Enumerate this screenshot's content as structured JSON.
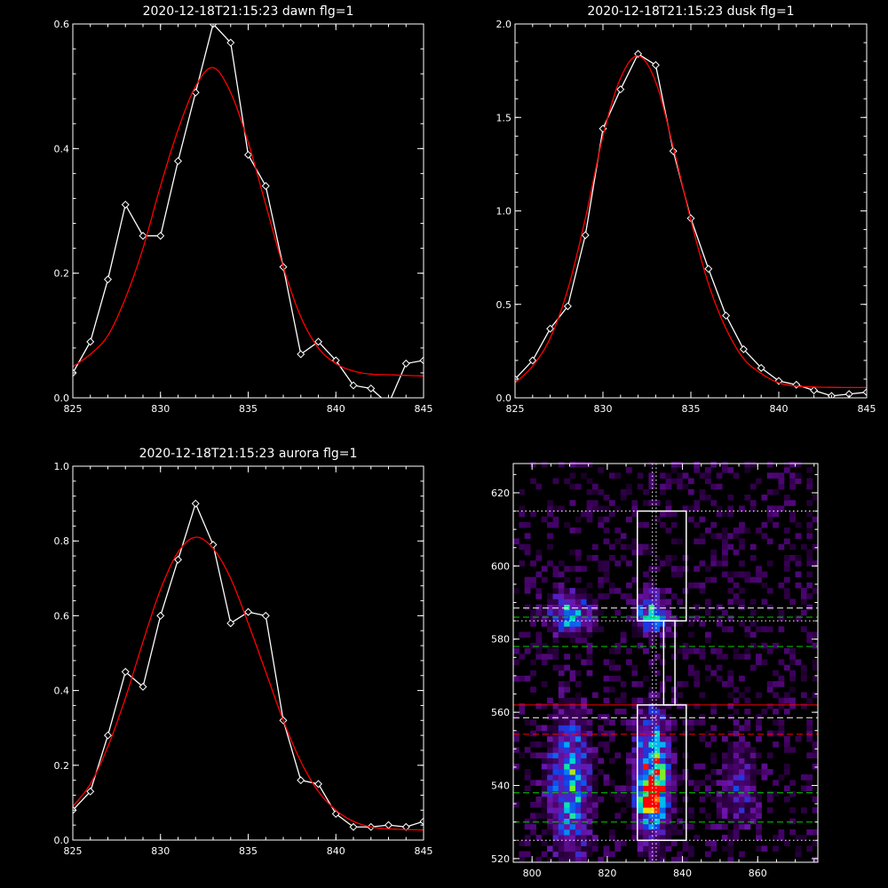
{
  "chart_data": [
    {
      "type": "line",
      "title": "2020-12-18T21:15:23 dawn flg=1",
      "xlim": [
        825,
        845
      ],
      "ylim": [
        0,
        0.6
      ],
      "xticks": [
        825,
        830,
        835,
        840,
        845
      ],
      "yticks": [
        0.0,
        0.2,
        0.4,
        0.6
      ],
      "ytick_labels": [
        "0.0",
        "0.2",
        "0.4",
        "0.6"
      ],
      "series": [
        {
          "color": "#ffffff",
          "marker": "diamond",
          "x": [
            825,
            826,
            827,
            828,
            829,
            830,
            831,
            832,
            833,
            834,
            835,
            836,
            837,
            838,
            839,
            840,
            841,
            842,
            843,
            844,
            845
          ],
          "y": [
            0.04,
            0.09,
            0.19,
            0.31,
            0.26,
            0.26,
            0.38,
            0.49,
            0.6,
            0.57,
            0.39,
            0.34,
            0.21,
            0.07,
            0.09,
            0.06,
            0.02,
            0.015,
            -0.01,
            0.055,
            0.06
          ]
        },
        {
          "color": "#ff0000",
          "x": [
            825,
            826,
            827,
            828,
            829,
            830,
            831,
            832,
            833,
            834,
            835,
            836,
            837,
            838,
            839,
            840,
            841,
            842,
            843,
            844,
            845
          ],
          "y": [
            0.05,
            0.07,
            0.1,
            0.16,
            0.24,
            0.34,
            0.43,
            0.5,
            0.53,
            0.49,
            0.41,
            0.31,
            0.21,
            0.13,
            0.08,
            0.055,
            0.043,
            0.038,
            0.037,
            0.036,
            0.035
          ]
        }
      ]
    },
    {
      "type": "line",
      "title": "2020-12-18T21:15:23 dusk flg=1",
      "xlim": [
        825,
        845
      ],
      "ylim": [
        0,
        2.0
      ],
      "xticks": [
        825,
        830,
        835,
        840,
        845
      ],
      "yticks": [
        0.0,
        0.5,
        1.0,
        1.5,
        2.0
      ],
      "ytick_labels": [
        "0.0",
        "0.5",
        "1.0",
        "1.5",
        "2.0"
      ],
      "series": [
        {
          "color": "#ffffff",
          "marker": "diamond",
          "x": [
            825,
            826,
            827,
            828,
            829,
            830,
            831,
            832,
            833,
            834,
            835,
            836,
            837,
            838,
            839,
            840,
            841,
            842,
            843,
            844,
            845
          ],
          "y": [
            0.1,
            0.2,
            0.37,
            0.49,
            0.87,
            1.44,
            1.65,
            1.84,
            1.78,
            1.32,
            0.96,
            0.69,
            0.44,
            0.26,
            0.16,
            0.09,
            0.07,
            0.04,
            0.01,
            0.02,
            0.03
          ]
        },
        {
          "color": "#ff0000",
          "x": [
            825,
            826,
            827,
            828,
            829,
            830,
            831,
            832,
            833,
            834,
            835,
            836,
            837,
            838,
            839,
            840,
            841,
            842,
            843,
            844,
            845
          ],
          "y": [
            0.08,
            0.17,
            0.32,
            0.58,
            0.96,
            1.4,
            1.71,
            1.83,
            1.69,
            1.34,
            0.95,
            0.61,
            0.37,
            0.21,
            0.13,
            0.08,
            0.063,
            0.058,
            0.056,
            0.055,
            0.055
          ]
        }
      ]
    },
    {
      "type": "line",
      "title": "2020-12-18T21:15:23 aurora flg=1",
      "xlim": [
        825,
        845
      ],
      "ylim": [
        0,
        1.0
      ],
      "xticks": [
        825,
        830,
        835,
        840,
        845
      ],
      "yticks": [
        0.0,
        0.2,
        0.4,
        0.6,
        0.8,
        1.0
      ],
      "ytick_labels": [
        "0.0",
        "0.2",
        "0.4",
        "0.6",
        "0.8",
        "1.0"
      ],
      "series": [
        {
          "color": "#ffffff",
          "marker": "diamond",
          "x": [
            825,
            826,
            827,
            828,
            829,
            830,
            831,
            832,
            833,
            834,
            835,
            836,
            837,
            838,
            839,
            840,
            841,
            842,
            843,
            844,
            845
          ],
          "y": [
            0.08,
            0.13,
            0.28,
            0.45,
            0.41,
            0.6,
            0.75,
            0.9,
            0.79,
            0.58,
            0.61,
            0.6,
            0.32,
            0.16,
            0.15,
            0.07,
            0.035,
            0.035,
            0.04,
            0.035,
            0.05
          ]
        },
        {
          "color": "#ff0000",
          "x": [
            825,
            826,
            827,
            828,
            829,
            830,
            831,
            832,
            833,
            834,
            835,
            836,
            837,
            838,
            839,
            840,
            841,
            842,
            843,
            844,
            845
          ],
          "y": [
            0.09,
            0.15,
            0.25,
            0.38,
            0.53,
            0.67,
            0.77,
            0.81,
            0.78,
            0.7,
            0.58,
            0.45,
            0.32,
            0.21,
            0.13,
            0.08,
            0.05,
            0.035,
            0.03,
            0.028,
            0.027
          ]
        }
      ]
    },
    {
      "type": "heatmap",
      "title": "",
      "colormap": "rainbow",
      "xlim": [
        795,
        876
      ],
      "ylim": [
        519,
        628
      ],
      "xticks": [
        800,
        820,
        840,
        860
      ],
      "yticks": [
        520,
        540,
        560,
        580,
        600,
        620
      ],
      "hot_spots": [
        {
          "x": 810,
          "y": 587,
          "w": 5,
          "h": 5,
          "intensity": 0.45
        },
        {
          "x": 832,
          "y": 587,
          "w": 4,
          "h": 5,
          "intensity": 0.45
        },
        {
          "x": 810,
          "y": 540,
          "w": 5,
          "h": 17,
          "intensity": 0.5
        },
        {
          "x": 832,
          "y": 542,
          "w": 4,
          "h": 15,
          "intensity": 0.75
        },
        {
          "x": 832,
          "y": 537,
          "w": 2.5,
          "h": 4,
          "intensity": 1.0
        },
        {
          "x": 855,
          "y": 540,
          "w": 5,
          "h": 12,
          "intensity": 0.18
        }
      ],
      "boxes": [
        {
          "x0": 828,
          "x1": 841,
          "y0": 585,
          "y1": 615,
          "color": "#ffffff"
        },
        {
          "x0": 835,
          "x1": 838,
          "y0": 562,
          "y1": 585,
          "color": "#ffffff"
        },
        {
          "x0": 828,
          "x1": 841,
          "y0": 525,
          "y1": 562,
          "color": "#ffffff"
        }
      ],
      "hlines": [
        {
          "y": 615,
          "color": "#ffffff",
          "style": "dotted"
        },
        {
          "y": 588.5,
          "color": "#ffffff",
          "style": "dashed"
        },
        {
          "y": 586,
          "color": "#00d000",
          "style": "dashed"
        },
        {
          "y": 585,
          "color": "#ffffff",
          "style": "dotted"
        },
        {
          "y": 578,
          "color": "#00d000",
          "style": "dashed"
        },
        {
          "y": 562,
          "color": "#ff0000",
          "style": "solid"
        },
        {
          "y": 558.5,
          "color": "#ffffff",
          "style": "dashed"
        },
        {
          "y": 554,
          "color": "#ff0000",
          "style": "dashed"
        },
        {
          "y": 538,
          "color": "#00d000",
          "style": "dashed"
        },
        {
          "y": 530,
          "color": "#00d000",
          "style": "dashed"
        },
        {
          "y": 525,
          "color": "#ffffff",
          "style": "dotted"
        }
      ],
      "vlines": [
        {
          "x": 832,
          "color": "#ffffff",
          "style": "dotted"
        },
        {
          "x": 833,
          "color": "#ffffff",
          "style": "dotted"
        }
      ]
    }
  ]
}
